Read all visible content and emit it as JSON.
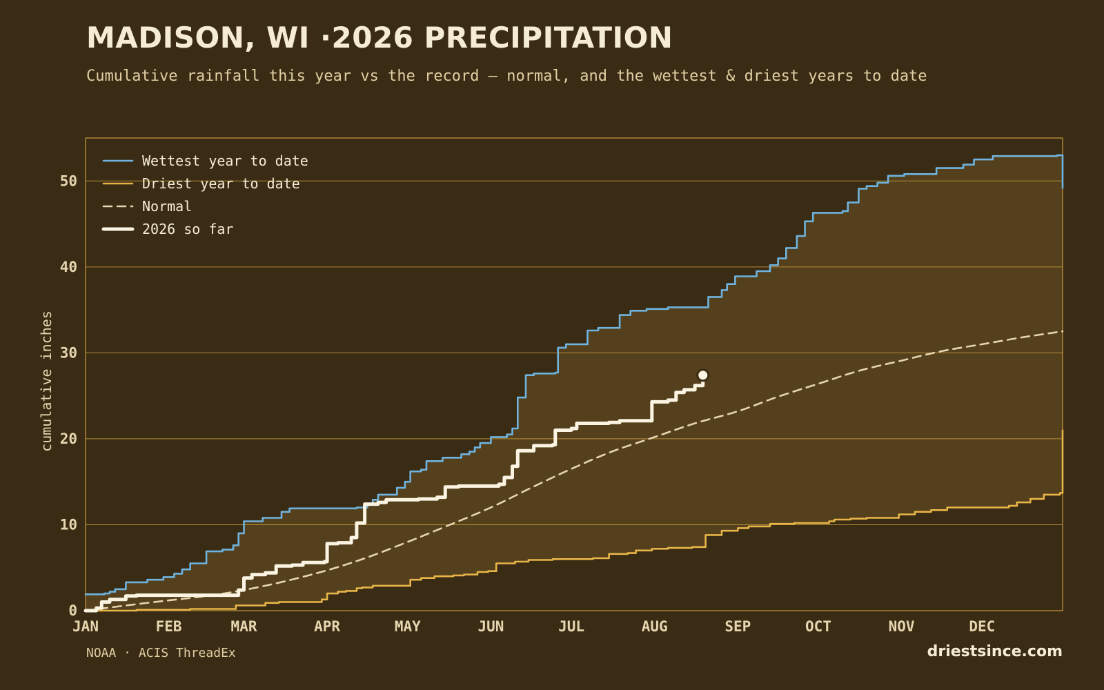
{
  "header": {
    "title": "MADISON, WI ·2026 PRECIPITATION",
    "subtitle": "Cumulative rainfall this year vs the record — normal, and the wettest & driest years to date"
  },
  "footer": {
    "source": "NOAA · ACIS ThreadEx",
    "brand": "driestsince.com"
  },
  "colors": {
    "background": "#3a2c14",
    "band_fill": "#54401d",
    "frame": "#c89b3c",
    "grid": "#c89b3c",
    "wettest": "#6fb4e0",
    "driest": "#e8b548",
    "normal": "#e6d6b0",
    "current": "#fbf4e2",
    "tick_text": "#e6d6b0"
  },
  "chart_data": {
    "type": "line",
    "title": "MADISON, WI ·2026 PRECIPITATION",
    "xlabel": "",
    "ylabel": "cumulative inches",
    "x_unit": "day of year",
    "xlim": [
      1,
      365
    ],
    "ylim": [
      0,
      55
    ],
    "y_ticks": [
      0,
      10,
      20,
      30,
      40,
      50
    ],
    "x_ticks": [
      {
        "label": "JAN",
        "day": 1
      },
      {
        "label": "FEB",
        "day": 32
      },
      {
        "label": "MAR",
        "day": 60
      },
      {
        "label": "APR",
        "day": 91
      },
      {
        "label": "MAY",
        "day": 121
      },
      {
        "label": "JUN",
        "day": 152
      },
      {
        "label": "JUL",
        "day": 182
      },
      {
        "label": "AUG",
        "day": 213
      },
      {
        "label": "SEP",
        "day": 244
      },
      {
        "label": "OCT",
        "day": 274
      },
      {
        "label": "NOV",
        "day": 305
      },
      {
        "label": "DEC",
        "day": 335
      }
    ],
    "grid": true,
    "legend_position": "top-left",
    "shaded_band": "between driest and wettest year to date",
    "series": [
      {
        "name": "Wettest year to date",
        "style": "step",
        "points": [
          [
            1,
            1.9
          ],
          [
            8,
            2.0
          ],
          [
            10,
            2.2
          ],
          [
            12,
            2.5
          ],
          [
            16,
            3.3
          ],
          [
            24,
            3.6
          ],
          [
            30,
            3.9
          ],
          [
            34,
            4.3
          ],
          [
            37,
            4.8
          ],
          [
            40,
            5.5
          ],
          [
            46,
            6.9
          ],
          [
            52,
            7.1
          ],
          [
            56,
            7.6
          ],
          [
            58,
            9.0
          ],
          [
            60,
            10.4
          ],
          [
            67,
            10.8
          ],
          [
            74,
            11.5
          ],
          [
            77,
            11.9
          ],
          [
            88,
            11.9
          ],
          [
            102,
            12.0
          ],
          [
            106,
            12.3
          ],
          [
            108,
            12.9
          ],
          [
            110,
            13.5
          ],
          [
            117,
            14.3
          ],
          [
            120,
            15.0
          ],
          [
            122,
            16.2
          ],
          [
            126,
            16.4
          ],
          [
            128,
            17.4
          ],
          [
            134,
            17.8
          ],
          [
            141,
            18.2
          ],
          [
            144,
            18.5
          ],
          [
            146,
            19.0
          ],
          [
            148,
            19.5
          ],
          [
            152,
            20.2
          ],
          [
            158,
            20.5
          ],
          [
            160,
            21.2
          ],
          [
            162,
            24.8
          ],
          [
            165,
            27.4
          ],
          [
            168,
            27.6
          ],
          [
            176,
            27.7
          ],
          [
            177,
            30.6
          ],
          [
            180,
            31.0
          ],
          [
            188,
            32.6
          ],
          [
            192,
            32.9
          ],
          [
            200,
            34.4
          ],
          [
            204,
            34.9
          ],
          [
            210,
            35.1
          ],
          [
            218,
            35.3
          ],
          [
            233,
            36.5
          ],
          [
            238,
            37.3
          ],
          [
            240,
            38.0
          ],
          [
            243,
            38.9
          ],
          [
            251,
            39.5
          ],
          [
            256,
            40.2
          ],
          [
            259,
            41.0
          ],
          [
            262,
            42.2
          ],
          [
            266,
            43.6
          ],
          [
            269,
            45.3
          ],
          [
            272,
            46.3
          ],
          [
            283,
            46.5
          ],
          [
            285,
            47.5
          ],
          [
            289,
            49.1
          ],
          [
            292,
            49.4
          ],
          [
            296,
            49.8
          ],
          [
            300,
            50.6
          ],
          [
            306,
            50.8
          ],
          [
            318,
            51.5
          ],
          [
            328,
            51.9
          ],
          [
            332,
            52.5
          ],
          [
            339,
            52.9
          ],
          [
            363,
            53.0
          ],
          [
            365,
            49.2
          ]
        ]
      },
      {
        "name": "Driest year to date",
        "style": "step",
        "points": [
          [
            1,
            0.0
          ],
          [
            20,
            0.1
          ],
          [
            40,
            0.2
          ],
          [
            56,
            0.2
          ],
          [
            57,
            0.6
          ],
          [
            68,
            0.9
          ],
          [
            73,
            1.0
          ],
          [
            85,
            1.0
          ],
          [
            89,
            1.3
          ],
          [
            91,
            2.0
          ],
          [
            95,
            2.2
          ],
          [
            98,
            2.3
          ],
          [
            102,
            2.6
          ],
          [
            104,
            2.7
          ],
          [
            108,
            2.9
          ],
          [
            110,
            2.9
          ],
          [
            118,
            2.9
          ],
          [
            122,
            3.6
          ],
          [
            126,
            3.8
          ],
          [
            131,
            4.0
          ],
          [
            138,
            4.1
          ],
          [
            142,
            4.2
          ],
          [
            147,
            4.5
          ],
          [
            151,
            4.6
          ],
          [
            154,
            5.5
          ],
          [
            161,
            5.7
          ],
          [
            166,
            5.9
          ],
          [
            175,
            6.0
          ],
          [
            186,
            6.0
          ],
          [
            190,
            6.1
          ],
          [
            196,
            6.6
          ],
          [
            203,
            6.7
          ],
          [
            206,
            7.0
          ],
          [
            212,
            7.2
          ],
          [
            218,
            7.3
          ],
          [
            227,
            7.4
          ],
          [
            232,
            8.8
          ],
          [
            238,
            9.3
          ],
          [
            244,
            9.6
          ],
          [
            248,
            9.8
          ],
          [
            256,
            10.1
          ],
          [
            265,
            10.2
          ],
          [
            278,
            10.4
          ],
          [
            280,
            10.6
          ],
          [
            286,
            10.7
          ],
          [
            292,
            10.8
          ],
          [
            304,
            11.2
          ],
          [
            310,
            11.5
          ],
          [
            316,
            11.7
          ],
          [
            322,
            12.0
          ],
          [
            345,
            12.2
          ],
          [
            348,
            12.6
          ],
          [
            353,
            13.0
          ],
          [
            358,
            13.5
          ],
          [
            364,
            13.7
          ],
          [
            365,
            21.0
          ]
        ]
      },
      {
        "name": "Normal",
        "style": "smooth",
        "points": [
          [
            1,
            0.0
          ],
          [
            16,
            0.6
          ],
          [
            32,
            1.2
          ],
          [
            46,
            1.7
          ],
          [
            60,
            2.4
          ],
          [
            75,
            3.4
          ],
          [
            91,
            4.7
          ],
          [
            106,
            6.2
          ],
          [
            121,
            8.0
          ],
          [
            136,
            9.9
          ],
          [
            152,
            12.0
          ],
          [
            167,
            14.3
          ],
          [
            182,
            16.5
          ],
          [
            197,
            18.5
          ],
          [
            213,
            20.2
          ],
          [
            228,
            21.8
          ],
          [
            244,
            23.2
          ],
          [
            259,
            24.9
          ],
          [
            274,
            26.4
          ],
          [
            289,
            27.9
          ],
          [
            305,
            29.1
          ],
          [
            320,
            30.2
          ],
          [
            335,
            31.0
          ],
          [
            350,
            31.8
          ],
          [
            365,
            32.5
          ]
        ]
      },
      {
        "name": "2026 so far",
        "style": "step",
        "points": [
          [
            1,
            0.0
          ],
          [
            5,
            0.3
          ],
          [
            7,
            1.0
          ],
          [
            10,
            1.3
          ],
          [
            16,
            1.7
          ],
          [
            20,
            1.8
          ],
          [
            55,
            1.8
          ],
          [
            58,
            2.4
          ],
          [
            60,
            3.8
          ],
          [
            63,
            4.2
          ],
          [
            68,
            4.4
          ],
          [
            72,
            5.2
          ],
          [
            78,
            5.3
          ],
          [
            82,
            5.6
          ],
          [
            90,
            5.7
          ],
          [
            91,
            7.8
          ],
          [
            95,
            7.9
          ],
          [
            100,
            8.5
          ],
          [
            102,
            10.2
          ],
          [
            105,
            12.4
          ],
          [
            110,
            12.6
          ],
          [
            113,
            12.9
          ],
          [
            125,
            13.0
          ],
          [
            132,
            13.2
          ],
          [
            135,
            14.4
          ],
          [
            140,
            14.5
          ],
          [
            155,
            14.7
          ],
          [
            157,
            15.5
          ],
          [
            160,
            16.8
          ],
          [
            162,
            18.6
          ],
          [
            168,
            19.2
          ],
          [
            175,
            19.3
          ],
          [
            176,
            21.0
          ],
          [
            182,
            21.2
          ],
          [
            184,
            21.8
          ],
          [
            196,
            21.9
          ],
          [
            200,
            22.1
          ],
          [
            210,
            22.1
          ],
          [
            212,
            24.3
          ],
          [
            218,
            24.5
          ],
          [
            221,
            25.4
          ],
          [
            224,
            25.7
          ],
          [
            228,
            26.2
          ],
          [
            231,
            27.4
          ]
        ]
      }
    ],
    "current_marker": {
      "day": 231,
      "value": 27.4
    }
  }
}
